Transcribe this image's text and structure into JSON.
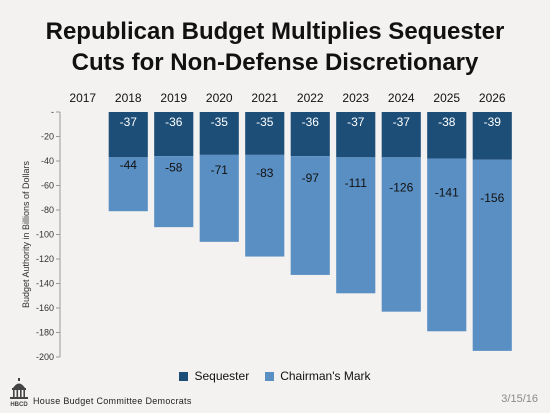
{
  "title_lines": [
    "Republican Budget Multiplies Sequester",
    "Cuts for Non-Defense Discretionary"
  ],
  "chart_data": {
    "type": "bar",
    "stacked": true,
    "title": "Republican Budget Multiplies Sequester Cuts for Non-Defense Discretionary",
    "categories": [
      "2017",
      "2018",
      "2019",
      "2020",
      "2021",
      "2022",
      "2023",
      "2024",
      "2025",
      "2026"
    ],
    "series": [
      {
        "name": "Sequester",
        "color": "#1c4e78",
        "values": [
          null,
          -37,
          -36,
          -35,
          -35,
          -36,
          -37,
          -37,
          -38,
          -39
        ]
      },
      {
        "name": "Chairman's Mark",
        "color": "#5a8fc3",
        "values": [
          null,
          -44,
          -58,
          -71,
          -83,
          -97,
          -111,
          -126,
          -141,
          -156
        ]
      }
    ],
    "ylabel": "Budget Authority in Billions of Dollars",
    "xlabel": "",
    "ylim": [
      -200,
      0
    ],
    "yticks": [
      0,
      -20,
      -40,
      -60,
      -80,
      -100,
      -120,
      -140,
      -160,
      -180,
      -200
    ],
    "ytick_labels": [
      "-",
      "-20",
      "-40",
      "-60",
      "-80",
      "-100",
      "-120",
      "-140",
      "-160",
      "-180",
      "-200"
    ],
    "x_axis_position": "top",
    "grid": false,
    "legend_position": "bottom"
  },
  "footer": {
    "logo_text": "HBCD",
    "org": "House Budget Committee Democrats",
    "date": "3/15/16"
  }
}
